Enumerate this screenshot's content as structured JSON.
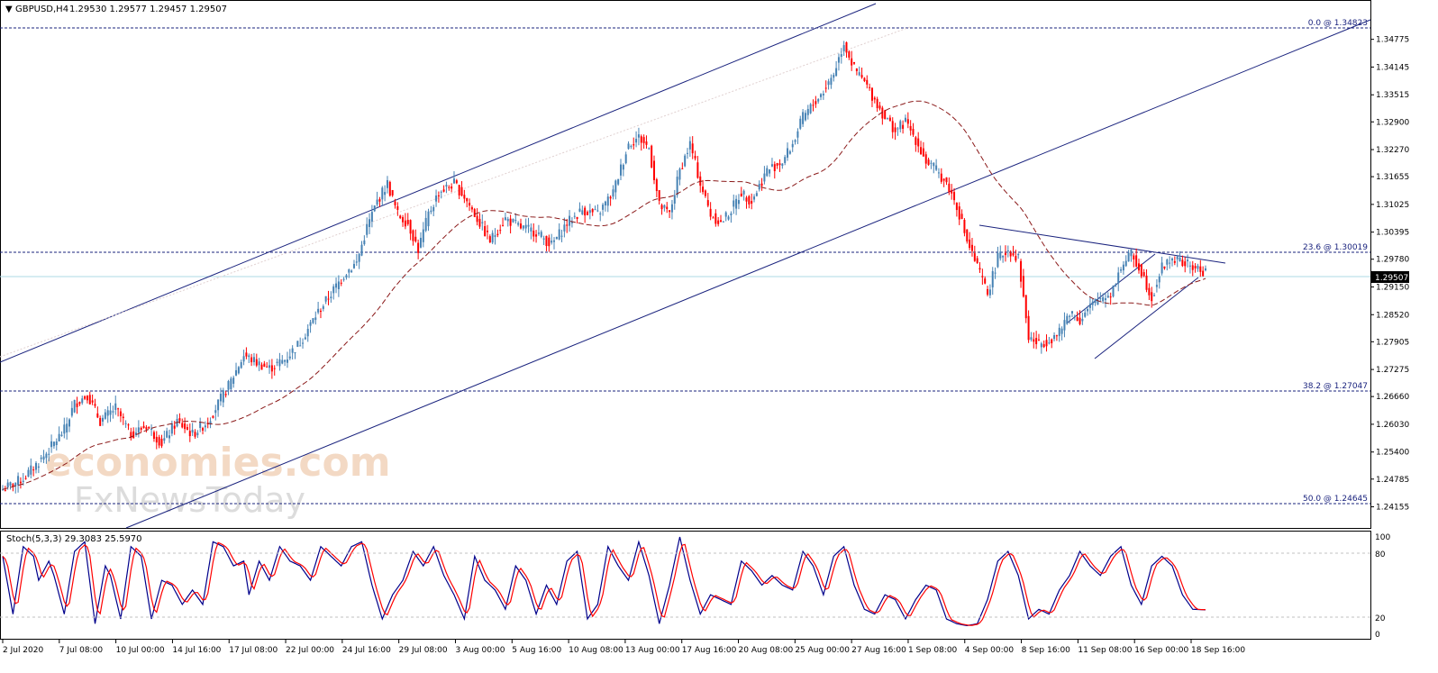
{
  "header": {
    "symbol": "GBPUSD,H4",
    "ohlc": "1.29530 1.29577 1.29457 1.29507"
  },
  "oscillator": {
    "label": "Stoch(5,3,3) 29.3083 25.5970",
    "levels": [
      "100",
      "80",
      "20",
      "0"
    ]
  },
  "watermark": {
    "line1": "economies.com",
    "line2": "FxNewsToday"
  },
  "chart_data": {
    "type": "candlestick",
    "symbol": "GBPUSD",
    "timeframe": "H4",
    "ylim": [
      1.239,
      1.353
    ],
    "y_ticks": [
      "1.34775",
      "1.34145",
      "1.33515",
      "1.32900",
      "1.32270",
      "1.31655",
      "1.31025",
      "1.30395",
      "1.29780",
      "1.29150",
      "1.28520",
      "1.27905",
      "1.27275",
      "1.26660",
      "1.26030",
      "1.25400",
      "1.24785",
      "1.24155"
    ],
    "current_price": "1.29507",
    "x_ticks": [
      "2 Jul 2020",
      "7 Jul 08:00",
      "10 Jul 00:00",
      "14 Jul 16:00",
      "17 Jul 08:00",
      "22 Jul 00:00",
      "24 Jul 16:00",
      "29 Jul 08:00",
      "3 Aug 00:00",
      "5 Aug 16:00",
      "10 Aug 08:00",
      "13 Aug 00:00",
      "17 Aug 16:00",
      "20 Aug 08:00",
      "25 Aug 00:00",
      "27 Aug 16:00",
      "1 Sep 08:00",
      "4 Sep 00:00",
      "8 Sep 16:00",
      "11 Sep 08:00",
      "16 Sep 00:00",
      "18 Sep 16:00"
    ],
    "fibonacci": [
      {
        "label": "0.0 @ 1.34823",
        "price": 1.34823
      },
      {
        "label": "23.6 @ 1.30019",
        "price": 1.30019
      },
      {
        "label": "38.2 @ 1.27047",
        "price": 1.27047
      },
      {
        "label": "50.0 @ 1.24645",
        "price": 1.24645
      }
    ],
    "price_anchors": [
      [
        0,
        1.2455
      ],
      [
        8,
        1.248
      ],
      [
        16,
        1.253
      ],
      [
        24,
        1.259
      ],
      [
        28,
        1.265
      ],
      [
        33,
        1.267
      ],
      [
        38,
        1.261
      ],
      [
        44,
        1.264
      ],
      [
        50,
        1.258
      ],
      [
        56,
        1.26
      ],
      [
        62,
        1.256
      ],
      [
        68,
        1.261
      ],
      [
        74,
        1.258
      ],
      [
        80,
        1.261
      ],
      [
        88,
        1.269
      ],
      [
        94,
        1.276
      ],
      [
        100,
        1.274
      ],
      [
        104,
        1.273
      ],
      [
        110,
        1.275
      ],
      [
        116,
        1.279
      ],
      [
        122,
        1.285
      ],
      [
        128,
        1.29
      ],
      [
        134,
        1.295
      ],
      [
        138,
        1.297
      ],
      [
        142,
        1.305
      ],
      [
        146,
        1.311
      ],
      [
        150,
        1.315
      ],
      [
        154,
        1.308
      ],
      [
        158,
        1.306
      ],
      [
        162,
        1.3
      ],
      [
        166,
        1.308
      ],
      [
        170,
        1.313
      ],
      [
        176,
        1.315
      ],
      [
        180,
        1.312
      ],
      [
        186,
        1.306
      ],
      [
        190,
        1.302
      ],
      [
        196,
        1.307
      ],
      [
        202,
        1.305
      ],
      [
        208,
        1.304
      ],
      [
        214,
        1.301
      ],
      [
        220,
        1.306
      ],
      [
        226,
        1.309
      ],
      [
        232,
        1.308
      ],
      [
        238,
        1.313
      ],
      [
        244,
        1.324
      ],
      [
        248,
        1.3255
      ],
      [
        252,
        1.323
      ],
      [
        256,
        1.31
      ],
      [
        260,
        1.308
      ],
      [
        264,
        1.318
      ],
      [
        268,
        1.324
      ],
      [
        272,
        1.315
      ],
      [
        276,
        1.308
      ],
      [
        280,
        1.306
      ],
      [
        284,
        1.309
      ],
      [
        288,
        1.313
      ],
      [
        292,
        1.311
      ],
      [
        298,
        1.318
      ],
      [
        304,
        1.32
      ],
      [
        308,
        1.324
      ],
      [
        312,
        1.33
      ],
      [
        316,
        1.333
      ],
      [
        320,
        1.336
      ],
      [
        324,
        1.34
      ],
      [
        328,
        1.347
      ],
      [
        332,
        1.341
      ],
      [
        336,
        1.338
      ],
      [
        340,
        1.334
      ],
      [
        344,
        1.33
      ],
      [
        348,
        1.327
      ],
      [
        352,
        1.329
      ],
      [
        356,
        1.325
      ],
      [
        360,
        1.32
      ],
      [
        364,
        1.318
      ],
      [
        368,
        1.315
      ],
      [
        372,
        1.31
      ],
      [
        376,
        1.302
      ],
      [
        380,
        1.296
      ],
      [
        384,
        1.29
      ],
      [
        388,
        1.298
      ],
      [
        392,
        1.3
      ],
      [
        396,
        1.298
      ],
      [
        400,
        1.28
      ],
      [
        404,
        1.2785
      ],
      [
        408,
        1.2795
      ],
      [
        412,
        1.281
      ],
      [
        416,
        1.286
      ],
      [
        420,
        1.284
      ],
      [
        424,
        1.287
      ],
      [
        428,
        1.289
      ],
      [
        432,
        1.29
      ],
      [
        436,
        1.296
      ],
      [
        440,
        1.299
      ],
      [
        444,
        1.295
      ],
      [
        448,
        1.289
      ],
      [
        452,
        1.296
      ],
      [
        456,
        1.298
      ],
      [
        460,
        1.297
      ],
      [
        464,
        1.296
      ],
      [
        468,
        1.295
      ]
    ],
    "stoch_anchors": [
      [
        0,
        80
      ],
      [
        4,
        20
      ],
      [
        8,
        90
      ],
      [
        12,
        80
      ],
      [
        14,
        55
      ],
      [
        18,
        75
      ],
      [
        20,
        60
      ],
      [
        24,
        20
      ],
      [
        28,
        85
      ],
      [
        32,
        95
      ],
      [
        36,
        10
      ],
      [
        40,
        70
      ],
      [
        42,
        60
      ],
      [
        46,
        15
      ],
      [
        50,
        90
      ],
      [
        54,
        80
      ],
      [
        58,
        15
      ],
      [
        62,
        55
      ],
      [
        66,
        50
      ],
      [
        70,
        30
      ],
      [
        74,
        45
      ],
      [
        78,
        30
      ],
      [
        82,
        95
      ],
      [
        86,
        90
      ],
      [
        90,
        70
      ],
      [
        94,
        75
      ],
      [
        96,
        40
      ],
      [
        100,
        75
      ],
      [
        104,
        55
      ],
      [
        108,
        90
      ],
      [
        112,
        75
      ],
      [
        116,
        70
      ],
      [
        120,
        55
      ],
      [
        124,
        90
      ],
      [
        128,
        80
      ],
      [
        132,
        70
      ],
      [
        136,
        90
      ],
      [
        140,
        95
      ],
      [
        144,
        50
      ],
      [
        148,
        15
      ],
      [
        152,
        40
      ],
      [
        156,
        55
      ],
      [
        160,
        85
      ],
      [
        164,
        70
      ],
      [
        168,
        90
      ],
      [
        172,
        60
      ],
      [
        176,
        40
      ],
      [
        180,
        15
      ],
      [
        184,
        80
      ],
      [
        188,
        55
      ],
      [
        192,
        45
      ],
      [
        196,
        25
      ],
      [
        200,
        70
      ],
      [
        204,
        55
      ],
      [
        208,
        20
      ],
      [
        212,
        50
      ],
      [
        216,
        30
      ],
      [
        220,
        75
      ],
      [
        224,
        85
      ],
      [
        228,
        15
      ],
      [
        232,
        30
      ],
      [
        236,
        90
      ],
      [
        240,
        70
      ],
      [
        244,
        55
      ],
      [
        248,
        95
      ],
      [
        252,
        60
      ],
      [
        256,
        10
      ],
      [
        260,
        50
      ],
      [
        264,
        100
      ],
      [
        268,
        55
      ],
      [
        272,
        20
      ],
      [
        276,
        40
      ],
      [
        280,
        35
      ],
      [
        284,
        30
      ],
      [
        288,
        75
      ],
      [
        292,
        65
      ],
      [
        296,
        50
      ],
      [
        300,
        60
      ],
      [
        304,
        50
      ],
      [
        308,
        45
      ],
      [
        312,
        85
      ],
      [
        316,
        70
      ],
      [
        320,
        40
      ],
      [
        324,
        80
      ],
      [
        328,
        90
      ],
      [
        332,
        50
      ],
      [
        336,
        25
      ],
      [
        340,
        20
      ],
      [
        344,
        40
      ],
      [
        348,
        35
      ],
      [
        352,
        15
      ],
      [
        356,
        35
      ],
      [
        360,
        50
      ],
      [
        364,
        45
      ],
      [
        368,
        15
      ],
      [
        372,
        10
      ],
      [
        376,
        8
      ],
      [
        380,
        10
      ],
      [
        384,
        35
      ],
      [
        388,
        75
      ],
      [
        392,
        85
      ],
      [
        396,
        60
      ],
      [
        400,
        15
      ],
      [
        404,
        25
      ],
      [
        408,
        20
      ],
      [
        412,
        45
      ],
      [
        416,
        60
      ],
      [
        420,
        85
      ],
      [
        424,
        70
      ],
      [
        428,
        60
      ],
      [
        432,
        80
      ],
      [
        436,
        90
      ],
      [
        440,
        50
      ],
      [
        444,
        30
      ],
      [
        448,
        70
      ],
      [
        452,
        80
      ],
      [
        456,
        70
      ],
      [
        460,
        40
      ],
      [
        464,
        25
      ]
    ]
  }
}
